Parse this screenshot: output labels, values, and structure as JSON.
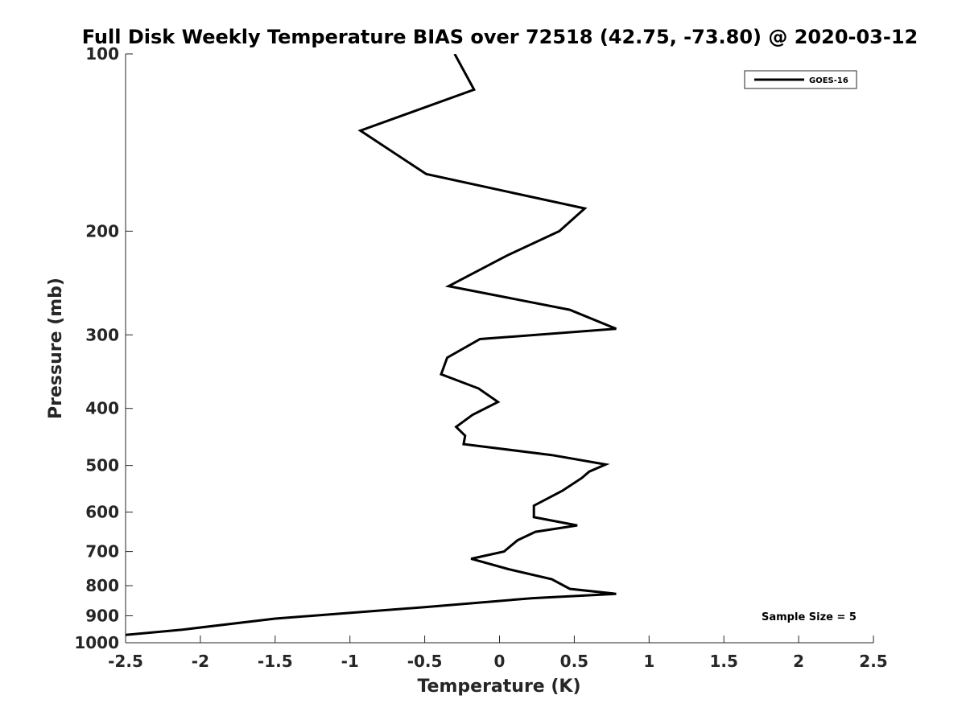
{
  "chart_data": {
    "type": "line",
    "title": "Full Disk Weekly Temperature BIAS over 72518 (42.75, -73.80) @ 2020-03-12",
    "xlabel": "Temperature (K)",
    "ylabel": "Pressure (mb)",
    "xlim": [
      -2.5,
      2.5
    ],
    "ylim": [
      100,
      1000
    ],
    "y_scale": "log",
    "y_reversed": true,
    "grid": false,
    "legend_position": "top-right",
    "x_ticks": [
      "-2.5",
      "-2",
      "-1.5",
      "-1",
      "-0.5",
      "0",
      "0.5",
      "1",
      "1.5",
      "2",
      "2.5"
    ],
    "y_ticks": [
      "100",
      "200",
      "300",
      "400",
      "500",
      "600",
      "700",
      "800",
      "900",
      "1000"
    ],
    "annotation": "Sample Size = 5",
    "series": [
      {
        "name": "GOES-16",
        "color": "#000000",
        "x": [
          -0.3,
          -0.17,
          -0.93,
          -0.49,
          0.57,
          0.4,
          0.05,
          -0.34,
          0.47,
          0.78,
          -0.13,
          -0.35,
          -0.39,
          -0.14,
          -0.01,
          -0.18,
          -0.29,
          -0.23,
          -0.24,
          0.35,
          0.71,
          0.6,
          0.55,
          0.42,
          0.23,
          0.23,
          0.52,
          0.24,
          0.12,
          0.03,
          -0.19,
          0.06,
          0.35,
          0.47,
          0.78,
          0.22,
          -0.5,
          -1.5,
          -2.12,
          -2.5
        ],
        "y": [
          100,
          115,
          135,
          160,
          183,
          200,
          220,
          248,
          272,
          293,
          305,
          328,
          350,
          370,
          390,
          410,
          430,
          445,
          460,
          480,
          498,
          512,
          525,
          552,
          585,
          612,
          632,
          648,
          670,
          700,
          720,
          750,
          780,
          810,
          826,
          840,
          870,
          910,
          950,
          970
        ]
      }
    ]
  }
}
